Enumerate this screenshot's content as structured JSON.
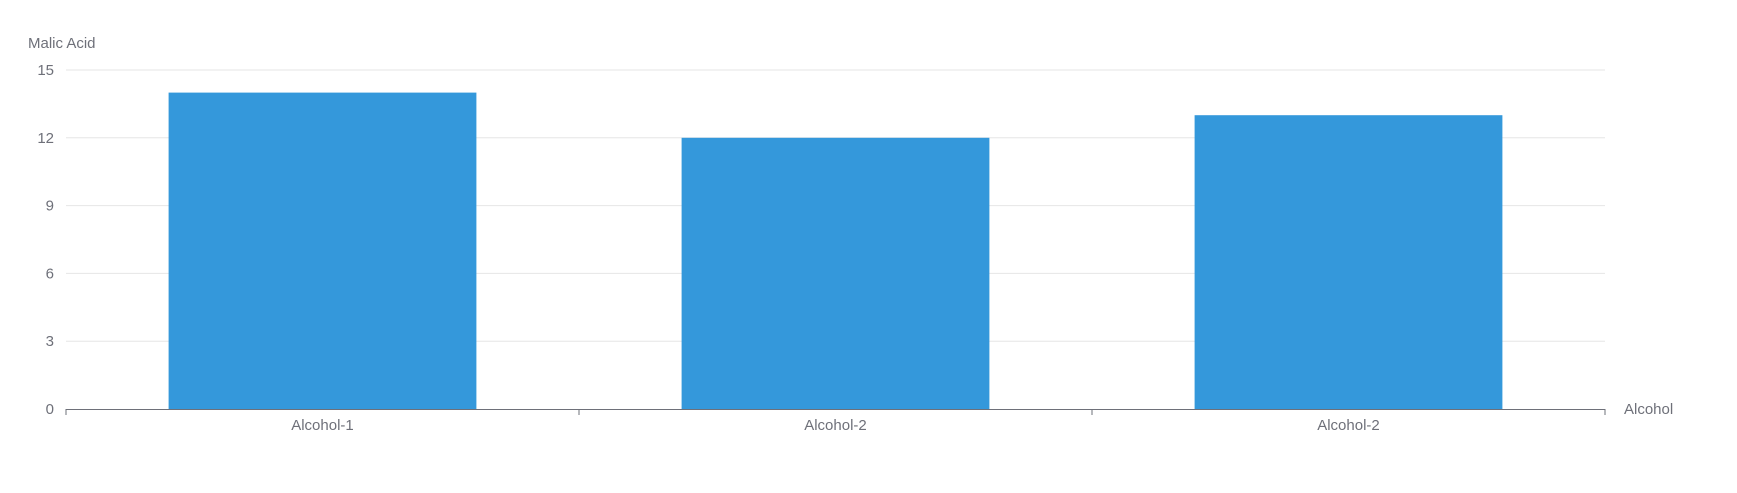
{
  "chart_data": {
    "type": "bar",
    "ylabel": "Malic Acid",
    "xlabel": "Alcohol",
    "categories": [
      "Alcohol-1",
      "Alcohol-2",
      "Alcohol-2"
    ],
    "values": [
      14,
      12,
      13
    ],
    "ylim": [
      0,
      15
    ],
    "yticks": [
      "0",
      "3",
      "6",
      "9",
      "12",
      "15"
    ],
    "grid": true,
    "legend": "none",
    "colors": {
      "bar": "#3498db",
      "grid": "#e6e6e6",
      "axis": "#6e7079",
      "label": "#6e7079"
    }
  }
}
